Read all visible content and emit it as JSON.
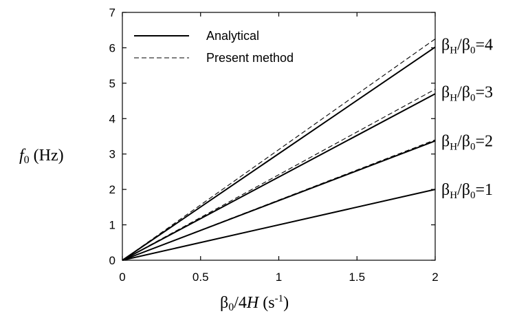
{
  "chart_data": {
    "type": "line",
    "title": "",
    "xlabel": {
      "beta": "β",
      "zero": "0",
      "rest": "/4",
      "H": "H",
      "unit": " (s",
      "exp": "-1",
      "close": ")"
    },
    "ylabel": {
      "f": "f",
      "zero": "0",
      "unit": " (Hz)"
    },
    "xlim": [
      0,
      2
    ],
    "ylim": [
      0,
      7
    ],
    "xticks": [
      "0",
      "0.5",
      "1",
      "1.5",
      "2"
    ],
    "yticks": [
      "0",
      "1",
      "2",
      "3",
      "4",
      "5",
      "6",
      "7"
    ],
    "grid": false,
    "legend": {
      "position": "top-left",
      "entries": [
        {
          "label": "Analytical",
          "style": "solid"
        },
        {
          "label": "Present method",
          "style": "dashed"
        }
      ]
    },
    "series": [
      {
        "name": "Analytical βH/β0=1",
        "style": "solid",
        "x": [
          0,
          2
        ],
        "y": [
          0,
          2.0
        ]
      },
      {
        "name": "Present method βH/β0=1",
        "style": "dashed",
        "x": [
          0,
          2
        ],
        "y": [
          0,
          2.0
        ]
      },
      {
        "name": "Analytical βH/β0=2",
        "style": "solid",
        "x": [
          0,
          2
        ],
        "y": [
          0,
          3.37
        ]
      },
      {
        "name": "Present method βH/β0=2",
        "style": "dashed",
        "x": [
          0,
          2
        ],
        "y": [
          0,
          3.4
        ]
      },
      {
        "name": "Analytical βH/β0=3",
        "style": "solid",
        "x": [
          0,
          2
        ],
        "y": [
          0,
          4.7
        ]
      },
      {
        "name": "Present method βH/β0=3",
        "style": "dashed",
        "x": [
          0,
          2
        ],
        "y": [
          0,
          4.83
        ]
      },
      {
        "name": "Analytical βH/β0=4",
        "style": "solid",
        "x": [
          0,
          2
        ],
        "y": [
          0,
          6.02
        ]
      },
      {
        "name": "Present method βH/β0=4",
        "style": "dashed",
        "x": [
          0,
          2
        ],
        "y": [
          0,
          6.25
        ]
      }
    ],
    "annotations": [
      {
        "y": 2.0,
        "beta": "β",
        "sub1": "H",
        "slash": "/",
        "sub2": "0",
        "eq": "=1"
      },
      {
        "y": 3.37,
        "beta": "β",
        "sub1": "H",
        "slash": "/",
        "sub2": "0",
        "eq": "=2"
      },
      {
        "y": 4.75,
        "beta": "β",
        "sub1": "H",
        "slash": "/",
        "sub2": "0",
        "eq": "=3"
      },
      {
        "y": 6.1,
        "beta": "β",
        "sub1": "H",
        "slash": "/",
        "sub2": "0",
        "eq": "=4"
      }
    ]
  }
}
